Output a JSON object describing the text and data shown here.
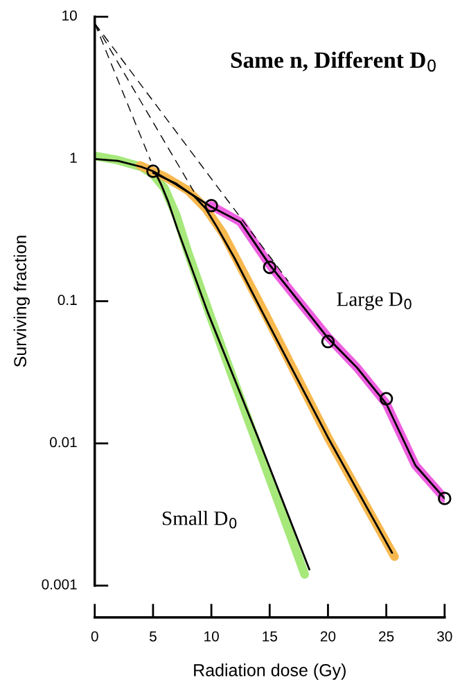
{
  "chart_data": {
    "type": "line",
    "title": "Same n, Different D$_{0}$",
    "xlabel": "Radiation dose (Gy)",
    "ylabel": "Surviving fraction",
    "log": "y",
    "xlim": [
      0,
      30
    ],
    "xticks": [
      0,
      5,
      10,
      15,
      20,
      25,
      30
    ],
    "ylim": [
      0.001,
      10
    ],
    "yticks": [
      {
        "value": 0.001,
        "label": "0.001"
      },
      {
        "value": 0.01,
        "label": "0.01"
      },
      {
        "value": 0.1,
        "label": "0.1"
      },
      {
        "value": 1,
        "label": "1"
      },
      {
        "value": 10,
        "label": "10"
      }
    ],
    "grid": false,
    "legend": false,
    "series": [
      {
        "color": "#a6e87a",
        "x": [
          0,
          2,
          4,
          5,
          6,
          7,
          8,
          10,
          14,
          18
        ],
        "values": [
          1.05,
          0.98,
          0.88,
          0.78,
          0.62,
          0.4,
          0.22,
          0.075,
          0.0095,
          0.0012
        ]
      },
      {
        "color": "#f7b84e",
        "x": [
          3.9,
          6,
          8,
          9.5,
          11,
          14.5,
          20,
          25.7
        ],
        "values": [
          0.9,
          0.75,
          0.6,
          0.45,
          0.3,
          0.085,
          0.011,
          0.0016
        ]
      },
      {
        "color": "#ee5fe0",
        "x": [
          10,
          12.5,
          15,
          17.5,
          20,
          22.5,
          25,
          27.5,
          30
        ],
        "values": [
          0.47,
          0.36,
          0.18,
          0.1,
          0.056,
          0.034,
          0.019,
          0.007,
          0.0041
        ]
      },
      {
        "color": "#000000",
        "x": [
          0,
          2,
          4,
          5,
          7,
          10,
          12.5,
          15,
          17.5,
          20,
          22.5,
          25,
          27.5,
          30
        ],
        "values": [
          1,
          0.97,
          0.88,
          0.82,
          0.66,
          0.46,
          0.36,
          0.18,
          0.1,
          0.055,
          0.034,
          0.019,
          0.007,
          0.0041
        ]
      },
      {
        "color": "#000000",
        "x": [
          5.2,
          5.7,
          6.3,
          7.1,
          9.7,
          14,
          18.4
        ],
        "values": [
          0.8,
          0.66,
          0.5,
          0.32,
          0.083,
          0.011,
          0.0013
        ]
      },
      {
        "color": "#000000",
        "x": [
          5,
          7,
          8.5,
          9.5,
          10.5,
          12,
          14.4,
          20,
          25.5
        ],
        "values": [
          0.8,
          0.67,
          0.55,
          0.45,
          0.33,
          0.2,
          0.083,
          0.011,
          0.0017
        ]
      },
      {
        "color": "#000000",
        "line_style": "dashed",
        "x": [
          0,
          4.8
        ],
        "values": [
          9,
          0.97
        ]
      },
      {
        "color": "#000000",
        "line_style": "dashed",
        "x": [
          0,
          8.5
        ],
        "values": [
          9,
          0.59
        ]
      },
      {
        "color": "#000000",
        "line_style": "dashed",
        "x": [
          0,
          16.6
        ],
        "values": [
          9,
          0.138
        ]
      },
      {
        "type": "scatter",
        "marker": "circle",
        "color": "#000000",
        "x": [
          5,
          10,
          15,
          20,
          25,
          30
        ],
        "values": [
          0.82,
          0.47,
          0.173,
          0.052,
          0.0206,
          0.0041
        ]
      }
    ],
    "annotations": [
      "Large D$_{0}$",
      "Small D$_{0}$"
    ]
  }
}
